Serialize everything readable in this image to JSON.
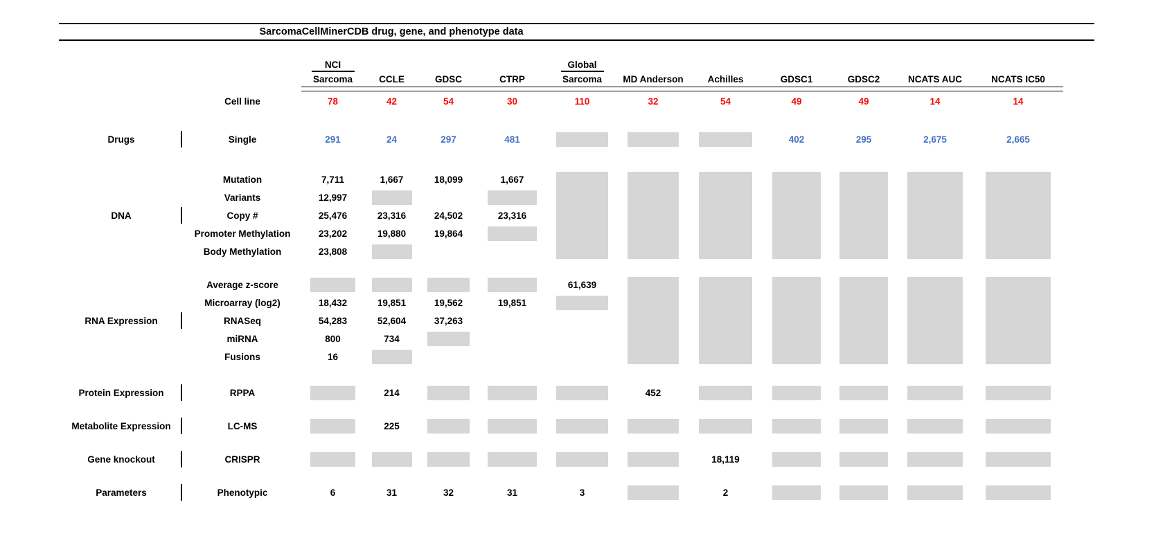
{
  "palette": {
    "red": "#f40b0b",
    "blue": "#4472c4",
    "gray": "#d6d6d6",
    "line": "#000000"
  },
  "table": {
    "title": "SarcomaCellMinerCDB drug, gene, and phenotype data",
    "no_data_marker": "no-data",
    "columns": [
      {
        "id": "nci-sarcoma",
        "group_label": "NCI",
        "label": "Sarcoma"
      },
      {
        "id": "ccle",
        "group_label": "",
        "label": "CCLE"
      },
      {
        "id": "gdsc",
        "group_label": "",
        "label": "GDSC"
      },
      {
        "id": "ctrp",
        "group_label": "",
        "label": "CTRP"
      },
      {
        "id": "global-sarcoma",
        "group_label": "Global",
        "label": "Sarcoma"
      },
      {
        "id": "md-anderson",
        "group_label": "",
        "label": "MD Anderson"
      },
      {
        "id": "achilles",
        "group_label": "",
        "label": "Achilles"
      },
      {
        "id": "gdsc1",
        "group_label": "",
        "label": "GDSC1"
      },
      {
        "id": "gdsc2",
        "group_label": "",
        "label": "GDSC2"
      },
      {
        "id": "ncats-auc",
        "group_label": "",
        "label": "NCATS AUC"
      },
      {
        "id": "ncats-ic50",
        "group_label": "",
        "label": "NCATS IC50"
      }
    ],
    "cell_line_row": {
      "label": "Cell line",
      "color": "red",
      "values": [
        "78",
        "42",
        "54",
        "30",
        "110",
        "32",
        "54",
        "49",
        "49",
        "14",
        "14"
      ]
    },
    "sections": [
      {
        "group": "Drugs",
        "rows": [
          {
            "label": "Single",
            "color": "blue",
            "cells": [
              "291",
              "24",
              "297",
              "481",
              "no-data",
              "no-data",
              "no-data",
              "402",
              "295",
              "2,675",
              "2,665"
            ]
          }
        ]
      },
      {
        "group": "DNA",
        "no_data_span_columns": [
          "global-sarcoma",
          "md-anderson",
          "achilles",
          "gdsc1",
          "gdsc2",
          "ncats-auc",
          "ncats-ic50"
        ],
        "rows": [
          {
            "label": "Mutation",
            "cells": [
              "7,711",
              "1,667",
              "18,099",
              "1,667",
              "",
              "",
              "",
              "",
              "",
              "",
              ""
            ]
          },
          {
            "label": "Variants",
            "cells": [
              "12,997",
              "no-data",
              "",
              "no-data",
              "",
              "",
              "",
              "",
              "",
              "",
              ""
            ]
          },
          {
            "label": "Copy #",
            "cells": [
              "25,476",
              "23,316",
              "24,502",
              "23,316",
              "",
              "",
              "",
              "",
              "",
              "",
              ""
            ]
          },
          {
            "label": "Promoter Methylation",
            "cells": [
              "23,202",
              "19,880",
              "19,864",
              "no-data",
              "",
              "",
              "",
              "",
              "",
              "",
              ""
            ]
          },
          {
            "label": "Body Methylation",
            "cells": [
              "23,808",
              "no-data",
              "",
              "",
              "",
              "",
              "",
              "",
              "",
              "",
              ""
            ]
          }
        ]
      },
      {
        "group": "RNA Expression",
        "no_data_span_columns": [
          "md-anderson",
          "achilles",
          "gdsc1",
          "gdsc2",
          "ncats-auc",
          "ncats-ic50"
        ],
        "rows": [
          {
            "label": "Average z-score",
            "cells": [
              "no-data",
              "no-data",
              "no-data",
              "no-data",
              "61,639",
              "",
              "",
              "",
              "",
              "",
              ""
            ]
          },
          {
            "label": "Microarray (log2)",
            "cells": [
              "18,432",
              "19,851",
              "19,562",
              "19,851",
              "no-data",
              "",
              "",
              "",
              "",
              "",
              ""
            ]
          },
          {
            "label": "RNASeq",
            "cells": [
              "54,283",
              "52,604",
              "37,263",
              "",
              "",
              "",
              "",
              "",
              "",
              "",
              ""
            ]
          },
          {
            "label": "miRNA",
            "cells": [
              "800",
              "734",
              "no-data",
              "",
              "",
              "",
              "",
              "",
              "",
              "",
              ""
            ]
          },
          {
            "label": "Fusions",
            "cells": [
              "16",
              "no-data",
              "",
              "",
              "",
              "",
              "",
              "",
              "",
              "",
              ""
            ]
          }
        ]
      },
      {
        "group": "Protein Expression",
        "rows": [
          {
            "label": "RPPA",
            "cells": [
              "no-data",
              "214",
              "no-data",
              "no-data",
              "no-data",
              "452",
              "no-data",
              "no-data",
              "no-data",
              "no-data",
              "no-data"
            ]
          }
        ]
      },
      {
        "group": "Metabolite Expression",
        "rows": [
          {
            "label": "LC-MS",
            "cells": [
              "no-data",
              "225",
              "no-data",
              "no-data",
              "no-data",
              "no-data",
              "no-data",
              "no-data",
              "no-data",
              "no-data",
              "no-data"
            ]
          }
        ]
      },
      {
        "group": "Gene knockout",
        "rows": [
          {
            "label": "CRISPR",
            "cells": [
              "no-data",
              "no-data",
              "no-data",
              "no-data",
              "no-data",
              "no-data",
              "18,119",
              "no-data",
              "no-data",
              "no-data",
              "no-data"
            ]
          }
        ]
      },
      {
        "group": "Parameters",
        "rows": [
          {
            "label": "Phenotypic",
            "cells": [
              "6",
              "31",
              "32",
              "31",
              "3",
              "no-data",
              "2",
              "no-data",
              "no-data",
              "no-data",
              "no-data"
            ]
          }
        ]
      }
    ]
  }
}
